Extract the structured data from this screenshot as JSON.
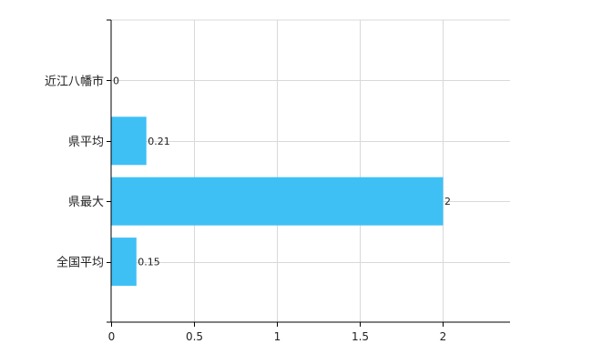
{
  "chart_data": {
    "type": "bar",
    "orientation": "horizontal",
    "categories": [
      "近江八幡市",
      "県平均",
      "県最大",
      "全国平均"
    ],
    "values": [
      0,
      0.21,
      2,
      0.15
    ],
    "data_labels": [
      "0",
      "0.21",
      "2",
      "0.15"
    ],
    "x_ticks": [
      "0",
      "0.5",
      "1",
      "1.5",
      "2"
    ],
    "xlim": [
      0,
      2.4
    ],
    "grid": true,
    "legend": "none",
    "bar_color": "#3ec0f5"
  }
}
